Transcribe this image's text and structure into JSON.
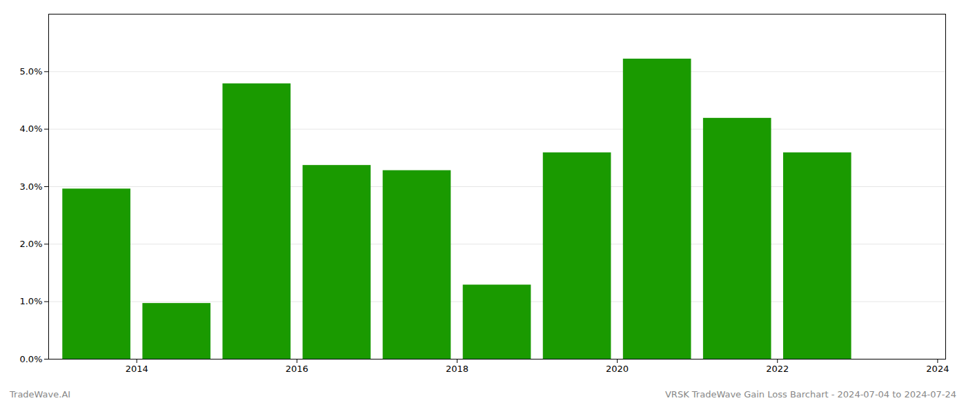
{
  "chart_data": {
    "type": "bar",
    "title": "VRSK TradeWave Gain Loss Barchart - 2024-07-04 to 2024-07-24",
    "annotations": [
      "TradeWave.AI"
    ],
    "x": [
      2014,
      2015,
      2016,
      2017,
      2018,
      2019,
      2020,
      2021,
      2022,
      2023
    ],
    "values": [
      0.0296,
      0.0097,
      0.0479,
      0.0337,
      0.0328,
      0.0129,
      0.0359,
      0.0522,
      0.0419,
      0.0359
    ],
    "color": "#1a9a00",
    "xlim": [
      2013.4,
      2024.6
    ],
    "xticks": [
      {
        "value": 2014.5,
        "label": "2014"
      },
      {
        "value": 2016.5,
        "label": "2016"
      },
      {
        "value": 2018.5,
        "label": "2018"
      },
      {
        "value": 2020.5,
        "label": "2020"
      },
      {
        "value": 2022.5,
        "label": "2022"
      },
      {
        "value": 2024.5,
        "label": "2024"
      }
    ],
    "ylim": [
      0,
      0.06
    ],
    "yticks": [
      {
        "value": 0.0,
        "label": "0.0%"
      },
      {
        "value": 0.01,
        "label": "1.0%"
      },
      {
        "value": 0.02,
        "label": "2.0%"
      },
      {
        "value": 0.03,
        "label": "3.0%"
      },
      {
        "value": 0.04,
        "label": "4.0%"
      },
      {
        "value": 0.05,
        "label": "5.0%"
      }
    ],
    "grid": true
  }
}
